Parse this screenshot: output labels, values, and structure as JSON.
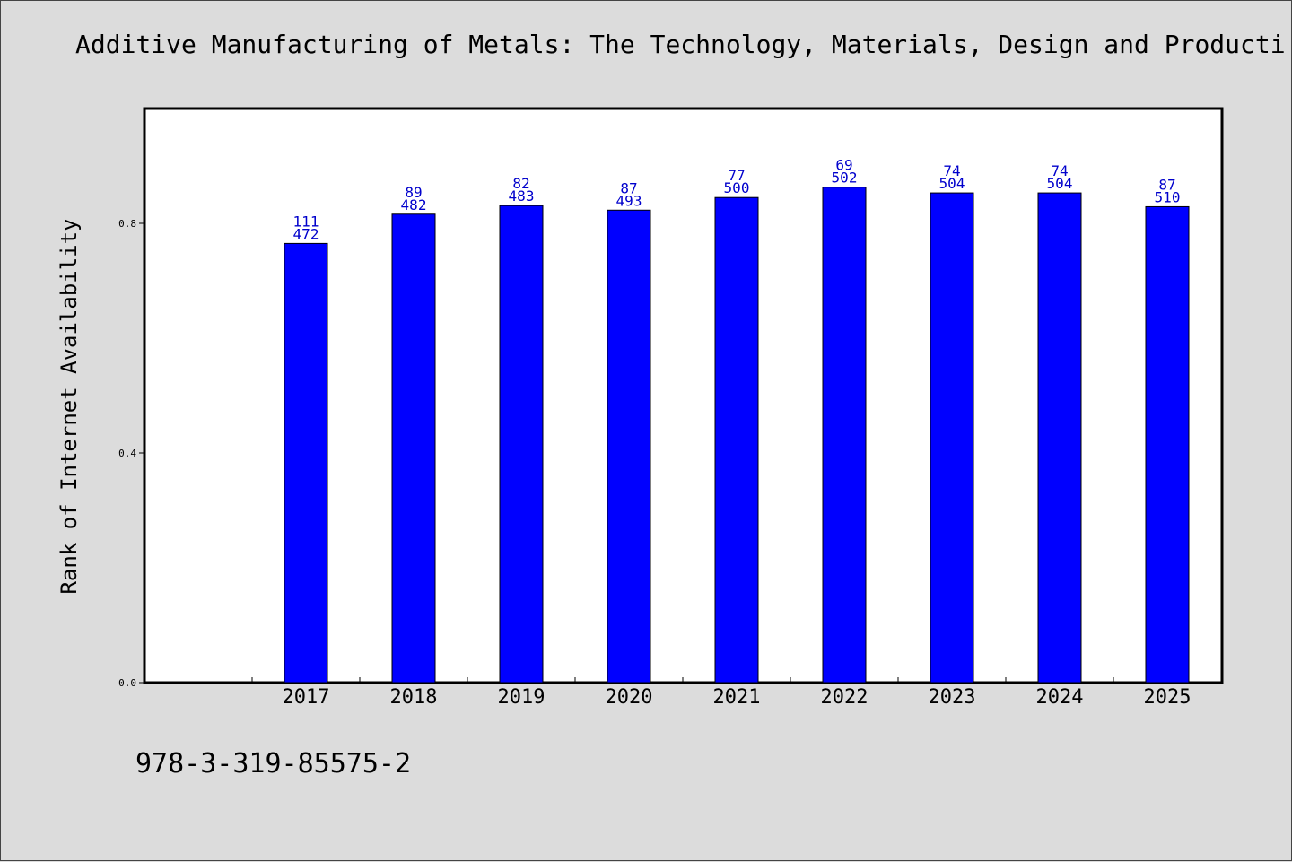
{
  "chart_data": {
    "type": "bar",
    "title": "Additive Manufacturing of Metals: The Technology, Materials, Design and Producti",
    "ylabel": "Rank of Internet Availability",
    "xlabel": "",
    "ylim": [
      0.0,
      1.0
    ],
    "yticks": [
      "0.0",
      "0.4",
      "0.8"
    ],
    "categories": [
      "2017",
      "2018",
      "2019",
      "2020",
      "2021",
      "2022",
      "2023",
      "2024",
      "2025"
    ],
    "values": [
      0.765,
      0.816,
      0.831,
      0.823,
      0.845,
      0.863,
      0.853,
      0.853,
      0.829
    ],
    "label_top": [
      "111",
      "89",
      "82",
      "87",
      "77",
      "69",
      "74",
      "74",
      "87"
    ],
    "label_bottom": [
      "472",
      "482",
      "483",
      "493",
      "500",
      "502",
      "504",
      "504",
      "510"
    ],
    "bar_color": "#0000ff",
    "label_color": "#0000cc",
    "grid": false
  },
  "footer": {
    "isbn": "978-3-319-85575-2"
  }
}
